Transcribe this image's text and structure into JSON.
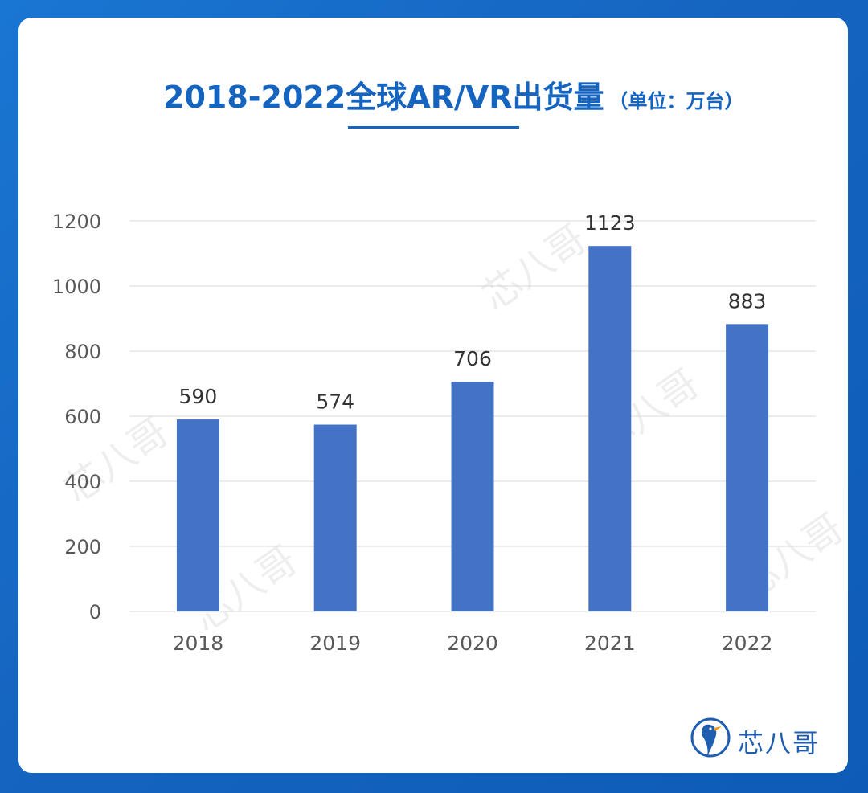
{
  "title": {
    "main": "2018-2022全球AR/VR出货量",
    "unit": "（单位：万台）"
  },
  "brand": {
    "name": "芯八哥",
    "watermark": "芯八哥"
  },
  "colors": {
    "background": "#1565c0",
    "card": "#ffffff",
    "accent": "#1565c0",
    "bar": "#4472c4",
    "grid": "#d9d9d9",
    "tick_text": "#595959",
    "label_text": "#333333"
  },
  "chart_data": {
    "type": "bar",
    "title": "2018-2022全球AR/VR出货量（单位：万台）",
    "categories": [
      "2018",
      "2019",
      "2020",
      "2021",
      "2022"
    ],
    "values": [
      590,
      574,
      706,
      1123,
      883
    ],
    "data_labels": [
      "590",
      "574",
      "706",
      "1123",
      "883"
    ],
    "ylim": [
      0,
      1200
    ],
    "yticks": [
      0,
      200,
      400,
      600,
      800,
      1000,
      1200
    ],
    "ytick_labels": [
      "0",
      "200",
      "400",
      "600",
      "800",
      "1000",
      "1200"
    ],
    "xlabel": "",
    "ylabel": "",
    "grid": true,
    "legend": "none"
  }
}
